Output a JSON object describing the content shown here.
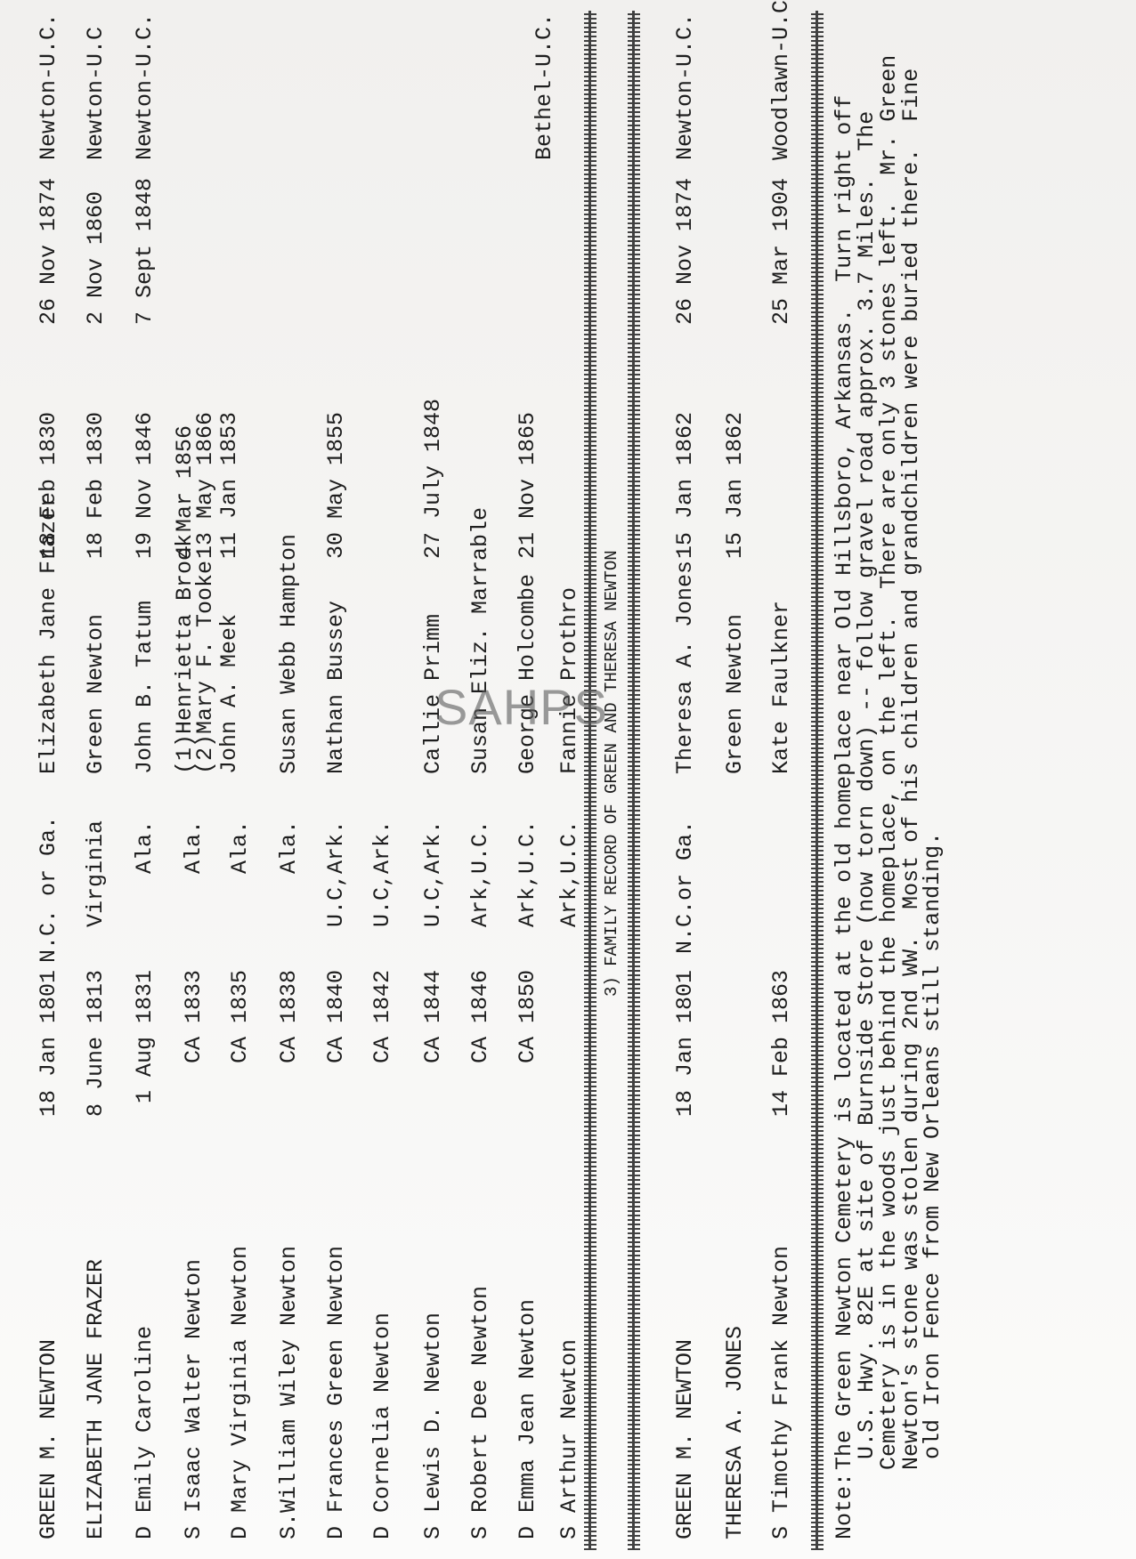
{
  "watermark": "SAHPS",
  "records_top": [
    {
      "name": "GREEN M. NEWTON",
      "birth": "18 Jan 1801",
      "place": "N.C. or Ga.",
      "spouse": [
        "Elizabeth Jane Frazer"
      ],
      "married": [
        "18 Feb 1830"
      ],
      "died": "26 Nov 1874",
      "cemetery": "Newton-U.C."
    },
    {
      "name": "ELIZABETH JANE FRAZER",
      "birth": "8 June 1813",
      "place": "Virginia",
      "spouse": [
        "Green Newton"
      ],
      "married": [
        "18 Feb 1830"
      ],
      "died": "2 Nov 1860",
      "cemetery": "Newton-U.C"
    },
    {
      "name": "D Emily Caroline",
      "birth": "1 Aug 1831",
      "place": "Ala.",
      "spouse": [
        "John B. Tatum"
      ],
      "married": [
        "19 Nov 1846"
      ],
      "died": "7 Sept 1848",
      "cemetery": "Newton-U.C."
    },
    {
      "name": "S Isaac Walter Newton",
      "birth": "CA 1833",
      "place": "Ala.",
      "spouse": [
        "(1)Henrietta Brock",
        "(2)Mary F. Tooke"
      ],
      "married": [
        "4 Mar 1856",
        "13 May 1866"
      ],
      "died": "",
      "cemetery": ""
    },
    {
      "name": "D Mary Virginia Newton",
      "birth": "CA 1835",
      "place": "Ala.",
      "spouse": [
        "John A. Meek"
      ],
      "married": [
        "11 Jan 1853"
      ],
      "died": "",
      "cemetery": ""
    },
    {
      "name": "S.William Wiley Newton",
      "birth": "CA 1838",
      "place": "Ala.",
      "spouse": [
        "Susan Webb Hampton"
      ],
      "married": [
        ""
      ],
      "died": "",
      "cemetery": ""
    },
    {
      "name": "D Frances Green Newton",
      "birth": "CA 1840",
      "place": "U.C,Ark.",
      "spouse": [
        "Nathan Bussey"
      ],
      "married": [
        "30 May 1855"
      ],
      "died": "",
      "cemetery": ""
    },
    {
      "name": "D Cornelia Newton",
      "birth": "CA 1842",
      "place": "U.C,Ark.",
      "spouse": [
        ""
      ],
      "married": [
        ""
      ],
      "died": "",
      "cemetery": ""
    },
    {
      "name": "S Lewis D. Newton",
      "birth": "CA 1844",
      "place": "U.C,Ark.",
      "spouse": [
        "Callie Primm"
      ],
      "married": [
        "27 July 1848"
      ],
      "died": "",
      "cemetery": ""
    },
    {
      "name": "S Robert Dee Newton",
      "birth": "CA 1846",
      "place": "Ark,U.C.",
      "spouse": [
        "Susan Eliz. Marrable"
      ],
      "married": [
        ""
      ],
      "died": "",
      "cemetery": ""
    },
    {
      "name": "D Emma Jean Newton",
      "birth": "CA 1850",
      "place": "Ark,U.C.",
      "spouse": [
        "George Holcombe"
      ],
      "married": [
        "21 Nov 1865"
      ],
      "died": "",
      "cemetery": ""
    },
    {
      "name": "S Arthur Newton",
      "birth": "",
      "place": "Ark,U.C.",
      "spouse": [
        "Fannie Prothro"
      ],
      "married": [
        ""
      ],
      "died": "",
      "cemetery": "Bethel-U.C."
    }
  ],
  "section_title": "3) FAMILY RECORD OF GREEN AND THERESA NEWTON",
  "records_bottom": [
    {
      "name": "GREEN M. NEWTON",
      "birth": "18 Jan 1801",
      "place": "N.C.or Ga.",
      "spouse": [
        "Theresa A. Jones"
      ],
      "married": [
        "15 Jan 1862"
      ],
      "died": "26 Nov 1874",
      "cemetery": "Newton-U.C."
    },
    {
      "name": "THERESA A. JONES",
      "birth": "",
      "place": "",
      "spouse": [
        "Green Newton"
      ],
      "married": [
        "15 Jan 1862"
      ],
      "died": "",
      "cemetery": ""
    },
    {
      "name": "S Timothy Frank Newton",
      "birth": "14 Feb 1863",
      "place": "",
      "spouse": [
        "Kate Faulkner"
      ],
      "married": [
        ""
      ],
      "died": "25 Mar 1904",
      "cemetery": "Woodlawn-U.C."
    }
  ],
  "note": {
    "label": "Note:",
    "lines": [
      "The Green Newton Cemetery is located at the old homeplace near Old Hillsboro, Arkansas.  Turn right off",
      "U.S. Hwy. 82E at site of Burnside Store (now torn down) -- follow gravel road approx. 3.7 Miles.  The",
      "Cemetery is in the woods just behind the homeplace, on the left.  There are only 3 stones left.  Mr. Green",
      "Newton's stone was stolen during 2nd WW.  Most of his children and grandchildren were buried there.  Fine",
      "old Iron Fence from New Orleans still standing."
    ]
  }
}
